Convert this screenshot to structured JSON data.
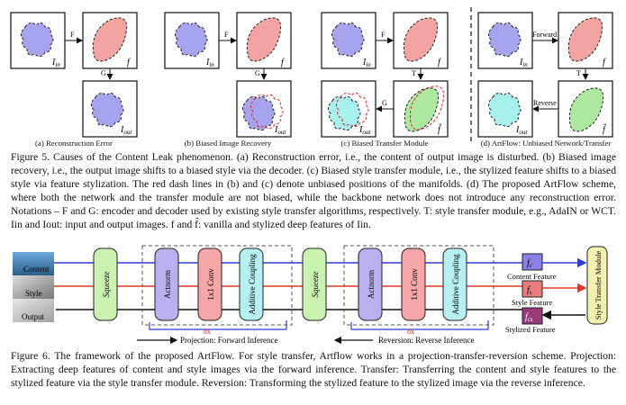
{
  "fig5": {
    "panels": [
      {
        "caption": "(a) Reconstruction Error",
        "arrow_top": "F",
        "arrow_side": "G",
        "in_label": "I",
        "in_sub": "in",
        "f_label": "f",
        "out_label": "I",
        "out_sub": "out"
      },
      {
        "caption": "(b) Biased Image Recovery",
        "arrow_top": "F",
        "arrow_side": "G",
        "in_label": "I",
        "in_sub": "in",
        "f_label": "f",
        "out_label": "I",
        "out_sub": "out"
      },
      {
        "caption": "(c) Biased Transfer Module",
        "arrow_top": "F",
        "arrow_side": "T",
        "arrow_back": "G",
        "in_label": "I",
        "in_sub": "in",
        "f_label": "f",
        "fhat_label": "f̂",
        "out_label": "I",
        "out_sub": "out"
      },
      {
        "caption": "(d) ArtFlow: Unbiased Network/Transfer",
        "arrow_top": "Forward",
        "arrow_side": "T",
        "arrow_back": "Reverse",
        "in_label": "I",
        "in_sub": "in",
        "f_label": "f",
        "fhat_label": "f̂",
        "out_label": "I",
        "out_sub": "out"
      }
    ],
    "caption": "Figure 5. Causes of the Content Leak phenomenon. (a) Reconstruction error, i.e., the content of output image is disturbed. (b) Biased image recovery, i.e., the output image shifts to a biased style via the decoder. (c) Biased style transfer module, i.e., the stylized feature shifts to a biased style via feature stylization. The red dash lines in (b) and (c) denote unbiased positions of the manifolds. (d) The proposed ArtFlow scheme, where both the network and the transfer module are not biased, while the backbone network does not introduce any reconstruction error. Notations – F and G: encoder and decoder used by existing style transfer algorithms, respectively. T: style transfer module, e.g., AdaIN or WCT. Iin and Iout: input and output images. f and f̂: vanilla and stylized deep features of Iin."
  },
  "fig6": {
    "inputs": {
      "content": "Content",
      "style": "Style",
      "output": "Output"
    },
    "blocks": {
      "squeeze": "Squeeze",
      "actnorm": "Actnorm",
      "conv": "1x1 Conv",
      "coupling": "Additive Coupling"
    },
    "repeat": "8x",
    "features": {
      "fc_main": "f",
      "fc_sub": "c",
      "fs_main": "f",
      "fs_sub": "s",
      "fcs_main": "f",
      "fcs_sub": "cs",
      "content_feature": "Content Feature",
      "style_feature": "Style Feature",
      "stylized_feature": "Stylized Feature"
    },
    "transfer_module": "Style Transfer Module",
    "projection": "Projection: Forward Inference",
    "reversion": "Reversion: Reverse Inference",
    "caption": "Figure 6. The framework of the proposed ArtFlow. For style transfer, Artflow works in a projection-transfer-reversion scheme. Projection: Extracting deep features of content and style images via the forward inference. Transfer: Transferring the content and style features to the stylized feature via the style transfer module. Reversion: Transforming the stylized feature to the stylized image via the reverse inference."
  },
  "colors": {
    "blue_line": "#2b3fd6",
    "red_line": "#e23a2a",
    "squeeze": "#c9f2b0",
    "actnorm": "#b9b0f0",
    "conv": "#f5a6a6",
    "coupling": "#b6f0f2",
    "fc": "#8a82e8",
    "fs": "#e87d7d",
    "fcs": "#9a3a7a",
    "transfer": "#f3f0b0"
  }
}
